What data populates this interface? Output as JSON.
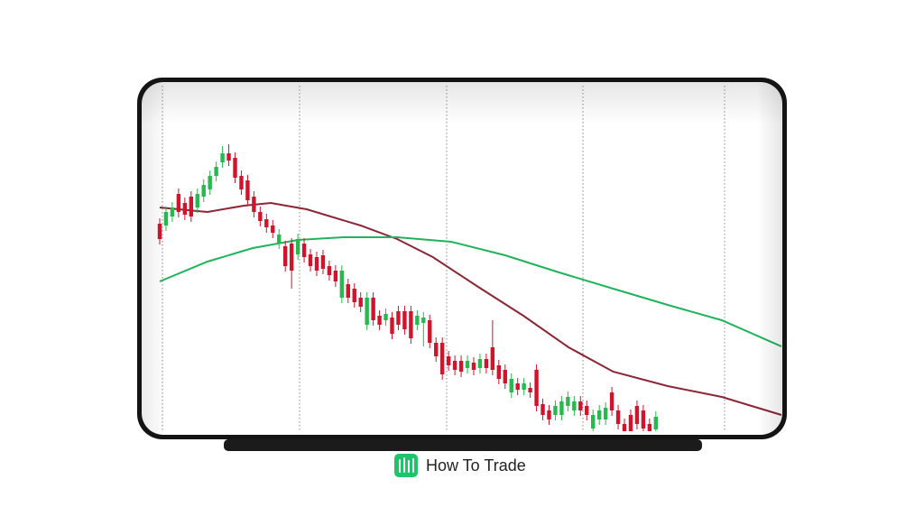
{
  "brand": {
    "name": "How To Trade"
  },
  "chart_data": {
    "type": "candlestick",
    "categories": [
      null,
      null,
      null,
      null,
      null,
      null,
      null,
      null,
      null,
      null,
      null,
      null,
      null,
      null,
      null,
      null,
      null,
      null,
      null,
      null,
      null,
      null,
      null,
      null,
      null,
      null,
      null,
      null,
      null,
      null,
      null,
      null,
      null,
      null,
      null,
      null,
      null,
      null,
      null,
      null,
      null,
      null,
      null,
      null,
      null,
      null,
      null,
      null,
      null,
      null,
      null,
      null,
      null,
      null,
      null,
      null,
      null,
      null,
      null,
      null,
      null,
      null,
      null,
      null,
      null,
      null,
      null,
      null,
      null,
      null,
      null,
      null,
      null,
      null,
      null,
      null,
      null,
      null,
      null,
      null
    ],
    "open": [
      230,
      228,
      238,
      263,
      253,
      260,
      248,
      260,
      268,
      283,
      298,
      308,
      303,
      283,
      278,
      260,
      243,
      235,
      228,
      208,
      205,
      208,
      196,
      208,
      196,
      193,
      195,
      183,
      178,
      148,
      163,
      158,
      148,
      118,
      148,
      128,
      123,
      126,
      133,
      133,
      133,
      118,
      120,
      123,
      98,
      98,
      83,
      78,
      78,
      70,
      76,
      70,
      80,
      93,
      73,
      68,
      43,
      53,
      46,
      48,
      68,
      30,
      23,
      18,
      18,
      28,
      23,
      33,
      28,
      3,
      13,
      13,
      43,
      23,
      8,
      18,
      28,
      23,
      8,
      2
    ],
    "high": [
      236,
      249,
      254,
      269,
      259,
      266,
      269,
      279,
      289,
      299,
      316,
      318,
      309,
      289,
      284,
      266,
      249,
      241,
      234,
      224,
      211,
      214,
      219,
      214,
      202,
      199,
      201,
      189,
      184,
      184,
      169,
      164,
      154,
      154,
      154,
      134,
      136,
      132,
      139,
      139,
      139,
      134,
      132,
      129,
      104,
      104,
      89,
      84,
      84,
      84,
      82,
      86,
      86,
      123,
      79,
      74,
      64,
      59,
      59,
      54,
      74,
      36,
      29,
      34,
      39,
      44,
      39,
      39,
      34,
      24,
      29,
      32,
      49,
      29,
      14,
      24,
      34,
      29,
      14,
      22
    ],
    "low": [
      207,
      222,
      232,
      237,
      234,
      232,
      242,
      254,
      262,
      277,
      292,
      294,
      275,
      262,
      250,
      237,
      227,
      220,
      214,
      202,
      177,
      158,
      190,
      187,
      177,
      172,
      174,
      167,
      160,
      142,
      142,
      137,
      132,
      112,
      117,
      112,
      117,
      102,
      112,
      107,
      97,
      112,
      94,
      92,
      77,
      57,
      67,
      62,
      60,
      64,
      62,
      64,
      64,
      62,
      52,
      47,
      37,
      40,
      40,
      37,
      22,
      12,
      7,
      12,
      12,
      22,
      17,
      17,
      12,
      0,
      7,
      7,
      17,
      2,
      0,
      0,
      2,
      0,
      0,
      0
    ],
    "close": [
      213,
      243,
      248,
      243,
      240,
      238,
      263,
      273,
      283,
      293,
      308,
      300,
      281,
      268,
      256,
      243,
      233,
      226,
      220,
      218,
      183,
      178,
      213,
      193,
      183,
      178,
      180,
      173,
      166,
      178,
      148,
      143,
      138,
      148,
      123,
      118,
      130,
      108,
      118,
      113,
      103,
      128,
      126,
      98,
      83,
      63,
      73,
      68,
      66,
      78,
      68,
      80,
      70,
      68,
      58,
      53,
      58,
      46,
      53,
      43,
      28,
      18,
      13,
      28,
      33,
      38,
      33,
      23,
      18,
      18,
      23,
      26,
      23,
      8,
      0,
      0,
      8,
      3,
      0,
      16
    ],
    "up_color": "#27b84e",
    "down_color": "#d0142c",
    "series": [
      {
        "color": "#8b2635",
        "x": [
          0,
          7.6,
          13.4,
          17.7,
          23.4,
          32,
          37.8,
          43.5,
          50.7,
          57.9,
          65.1,
          72.2,
          80.9,
          89.5,
          99
        ],
        "values": [
          248,
          243,
          250,
          253,
          246,
          228,
          213,
          193,
          160,
          128,
          93,
          66,
          50,
          38,
          18
        ]
      },
      {
        "color": "#1fb35a",
        "x": [
          0,
          7.6,
          14.8,
          22,
          29.2,
          37.8,
          46.4,
          55,
          63.6,
          72.2,
          80.9,
          89.5,
          99
        ],
        "values": [
          166,
          188,
          203,
          212,
          215,
          215,
          210,
          195,
          176,
          158,
          140,
          123,
          94
        ]
      }
    ],
    "xlim": [
      0,
      99
    ],
    "ylim": [
      0,
      383
    ]
  }
}
